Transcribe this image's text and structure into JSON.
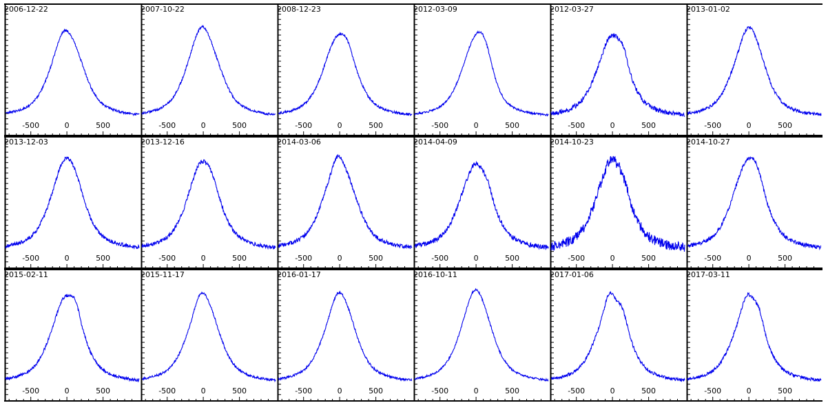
{
  "colors": {
    "line": "#0000ee",
    "axis": "#000000",
    "background": "#ffffff"
  },
  "chart_data": {
    "type": "line",
    "layout": "small-multiples",
    "rows": 3,
    "cols": 6,
    "xlim": [
      -850,
      1000
    ],
    "xticks": [
      -500,
      0,
      500
    ],
    "grid": false,
    "panels": [
      {
        "date": "2006-12-22",
        "peak": 0.82,
        "bumps": [
          [
            -60,
            0.92,
            70
          ],
          [
            90,
            0.84,
            90
          ]
        ],
        "noise": 0.006
      },
      {
        "date": "2007-10-22",
        "peak": 0.85,
        "bumps": [
          [
            -20,
            0.96,
            90
          ],
          [
            110,
            0.82,
            80
          ]
        ],
        "noise": 0.006
      },
      {
        "date": "2008-12-23",
        "peak": 0.79,
        "bumps": [
          [
            -70,
            0.84,
            80
          ],
          [
            100,
            0.9,
            70
          ]
        ],
        "noise": 0.006
      },
      {
        "date": "2012-03-09",
        "peak": 0.64,
        "bumps": [
          [
            20,
            0.9,
            130
          ],
          [
            130,
            0.84,
            90
          ]
        ],
        "noise": 0.005
      },
      {
        "date": "2012-03-27",
        "peak": 0.74,
        "bumps": [
          [
            -20,
            0.88,
            80
          ],
          [
            150,
            0.93,
            60
          ]
        ],
        "noise": 0.012
      },
      {
        "date": "2013-01-02",
        "peak": 0.79,
        "bumps": [
          [
            -10,
            0.96,
            80
          ],
          [
            130,
            0.86,
            80
          ]
        ],
        "noise": 0.008
      },
      {
        "date": "2013-12-03",
        "peak": 0.85,
        "bumps": [
          [
            -40,
            0.95,
            80
          ],
          [
            100,
            0.93,
            80
          ]
        ],
        "noise": 0.01
      },
      {
        "date": "2013-12-16",
        "peak": 0.82,
        "bumps": [
          [
            -70,
            0.92,
            80
          ],
          [
            100,
            0.92,
            80
          ]
        ],
        "noise": 0.01
      },
      {
        "date": "2014-03-06",
        "peak": 0.87,
        "bumps": [
          [
            -30,
            1.0,
            60
          ],
          [
            130,
            0.86,
            80
          ]
        ],
        "noise": 0.01
      },
      {
        "date": "2014-04-09",
        "peak": 0.82,
        "bumps": [
          [
            -10,
            0.9,
            60
          ],
          [
            150,
            0.92,
            60
          ]
        ],
        "noise": 0.012
      },
      {
        "date": "2014-10-23",
        "peak": 0.86,
        "bumps": [
          [
            -30,
            0.95,
            60
          ],
          [
            140,
            0.95,
            60
          ]
        ],
        "noise": 0.025
      },
      {
        "date": "2014-10-27",
        "peak": 0.87,
        "bumps": [
          [
            -30,
            0.92,
            80
          ],
          [
            110,
            1.0,
            70
          ]
        ],
        "noise": 0.01
      },
      {
        "date": "2015-02-11",
        "peak": 0.82,
        "bumps": [
          [
            -40,
            0.9,
            70
          ],
          [
            120,
            1.0,
            60
          ]
        ],
        "noise": 0.008
      },
      {
        "date": "2015-11-17",
        "peak": 0.79,
        "bumps": [
          [
            -40,
            0.97,
            70
          ],
          [
            100,
            0.86,
            80
          ]
        ],
        "noise": 0.006
      },
      {
        "date": "2016-01-17",
        "peak": 0.79,
        "bumps": [
          [
            -20,
            0.97,
            80
          ],
          [
            130,
            0.86,
            80
          ]
        ],
        "noise": 0.006
      },
      {
        "date": "2016-10-11",
        "peak": 0.82,
        "bumps": [
          [
            -20,
            1.0,
            90
          ],
          [
            130,
            0.86,
            90
          ]
        ],
        "noise": 0.005
      },
      {
        "date": "2017-01-06",
        "peak": 0.78,
        "bumps": [
          [
            -40,
            1.0,
            60
          ],
          [
            140,
            0.95,
            60
          ]
        ],
        "noise": 0.008
      },
      {
        "date": "2017-03-11",
        "peak": 0.74,
        "bumps": [
          [
            -20,
            0.98,
            70
          ],
          [
            140,
            0.96,
            60
          ]
        ],
        "noise": 0.008
      }
    ]
  }
}
